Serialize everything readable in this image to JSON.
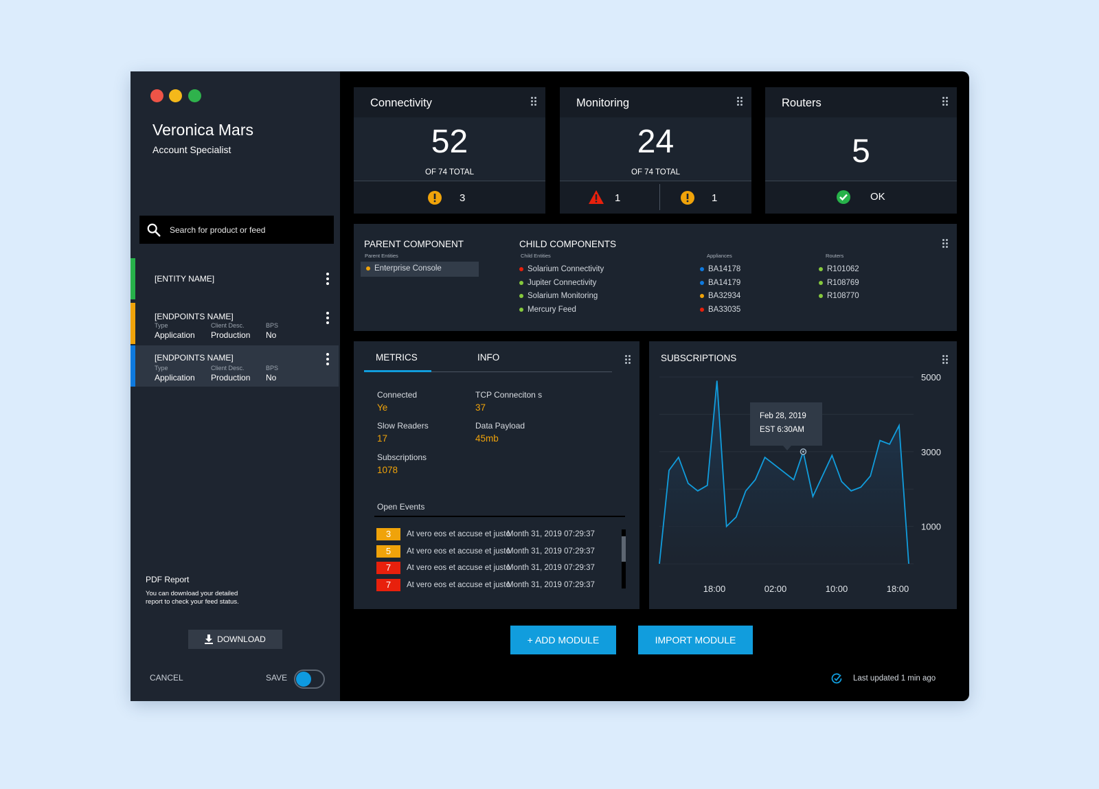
{
  "colors": {
    "background": "#dcecfc",
    "sidebar": "#1e2530",
    "card": "#1c242f",
    "accent": "#119ddd",
    "orange": "#f0a30a",
    "red": "#e8200c",
    "green": "#27b24a",
    "blue": "#0e7ae0",
    "lime": "#86c93d"
  },
  "window_controls": [
    "close",
    "minimize",
    "maximize"
  ],
  "user": {
    "name": "Veronica Mars",
    "role": "Account Specialist"
  },
  "search": {
    "placeholder": "Search for product or feed"
  },
  "entities": [
    {
      "name": "[ENTITY NAME]",
      "color": "#27b24a"
    },
    {
      "name": "[ENDPOINTS NAME]",
      "color": "#f0a30a",
      "type_label": "Type",
      "type": "Application",
      "client_label": "Client Desc.",
      "client": "Production",
      "bps_label": "BPS",
      "bps": "No"
    },
    {
      "name": "[ENDPOINTS NAME]",
      "color": "#0e7ae0",
      "type_label": "Type",
      "type": "Application",
      "client_label": "Client Desc.",
      "client": "Production",
      "bps_label": "BPS",
      "bps": "No"
    }
  ],
  "pdf": {
    "title": "PDF Report",
    "description": "You can download your detailed report to check your feed status.",
    "download_label": "DOWNLOAD"
  },
  "footer": {
    "cancel_label": "CANCEL",
    "save_label": "SAVE",
    "save_on": true
  },
  "cards": {
    "connectivity": {
      "title": "Connectivity",
      "value": "52",
      "subtitle": "OF 74 TOTAL",
      "warnings": "3"
    },
    "monitoring": {
      "title": "Monitoring",
      "value": "24",
      "subtitle": "OF 74 TOTAL",
      "alerts": "1",
      "warnings": "1"
    },
    "routers": {
      "title": "Routers",
      "value": "5",
      "status": "OK"
    }
  },
  "components": {
    "parent_title": "PARENT COMPONENT",
    "parent_sub": "Parent Entities",
    "parent_item": "Enterprise Console",
    "child_title": "CHILD COMPONENTS",
    "child_sub": "Child Entities",
    "children": [
      {
        "label": "Solarium Connectivity",
        "color": "#e8200c"
      },
      {
        "label": "Jupiter Connectivity",
        "color": "#86c93d"
      },
      {
        "label": "Solarium Monitoring",
        "color": "#86c93d"
      },
      {
        "label": "Mercury Feed",
        "color": "#86c93d"
      }
    ],
    "appliances_sub": "Appliances",
    "appliances": [
      {
        "label": "BA14178",
        "color": "#0e7ae0"
      },
      {
        "label": "BA14179",
        "color": "#0e7ae0"
      },
      {
        "label": "BA32934",
        "color": "#f0a30a"
      },
      {
        "label": "BA33035",
        "color": "#e8200c"
      }
    ],
    "routers_sub": "Routers",
    "routers": [
      {
        "label": "R101062",
        "color": "#86c93d"
      },
      {
        "label": "R108769",
        "color": "#86c93d"
      },
      {
        "label": "R108770",
        "color": "#86c93d"
      }
    ]
  },
  "metrics": {
    "tabs": [
      "METRICS",
      "INFO"
    ],
    "active_tab": "METRICS",
    "connected_label": "Connected",
    "connected": "Ye",
    "tcp_label": "TCP Conneciton s",
    "tcp": "37",
    "slow_label": "Slow Readers",
    "slow": "17",
    "payload_label": "Data Payload",
    "payload": "45mb",
    "subs_label": "Subscriptions",
    "subs": "1078",
    "events_title": "Open Events",
    "events": [
      {
        "count": "3",
        "color": "#f0a30a",
        "text": "At vero eos et accuse et justo",
        "date": "Month 31, 2019  07:29:37"
      },
      {
        "count": "5",
        "color": "#f0a30a",
        "text": "At vero eos et accuse et justo",
        "date": "Month 31, 2019  07:29:37"
      },
      {
        "count": "7",
        "color": "#e8200c",
        "text": "At vero eos et accuse et justo",
        "date": "Month 31, 2019  07:29:37"
      },
      {
        "count": "7",
        "color": "#e8200c",
        "text": "At vero eos et accuse et justo",
        "date": "Month 31, 2019  07:29:37"
      }
    ]
  },
  "subscriptions": {
    "title": "SUBSCRIPTIONS",
    "tooltip_date": "Feb 28, 2019",
    "tooltip_time": "EST 6:30AM"
  },
  "chart_data": {
    "type": "area",
    "title": "SUBSCRIPTIONS",
    "x_ticks": [
      "18:00",
      "02:00",
      "10:00",
      "18:00"
    ],
    "y_ticks": [
      5000,
      3000,
      1000
    ],
    "ylim": [
      0,
      5000
    ],
    "grid": true,
    "values": [
      0,
      2500,
      2850,
      2150,
      1950,
      2100,
      4900,
      1000,
      1250,
      1950,
      2250,
      2850,
      2650,
      2450,
      2250,
      3000,
      1800,
      2350,
      2900,
      2200,
      1950,
      2050,
      2350,
      3300,
      3200,
      3700,
      0
    ],
    "highlight_index": 15,
    "series_color": "#119ddd"
  },
  "actions": {
    "add_label": "+ ADD MODULE",
    "import_label": "IMPORT MODULE"
  },
  "last_updated": "Last updated 1 min ago"
}
